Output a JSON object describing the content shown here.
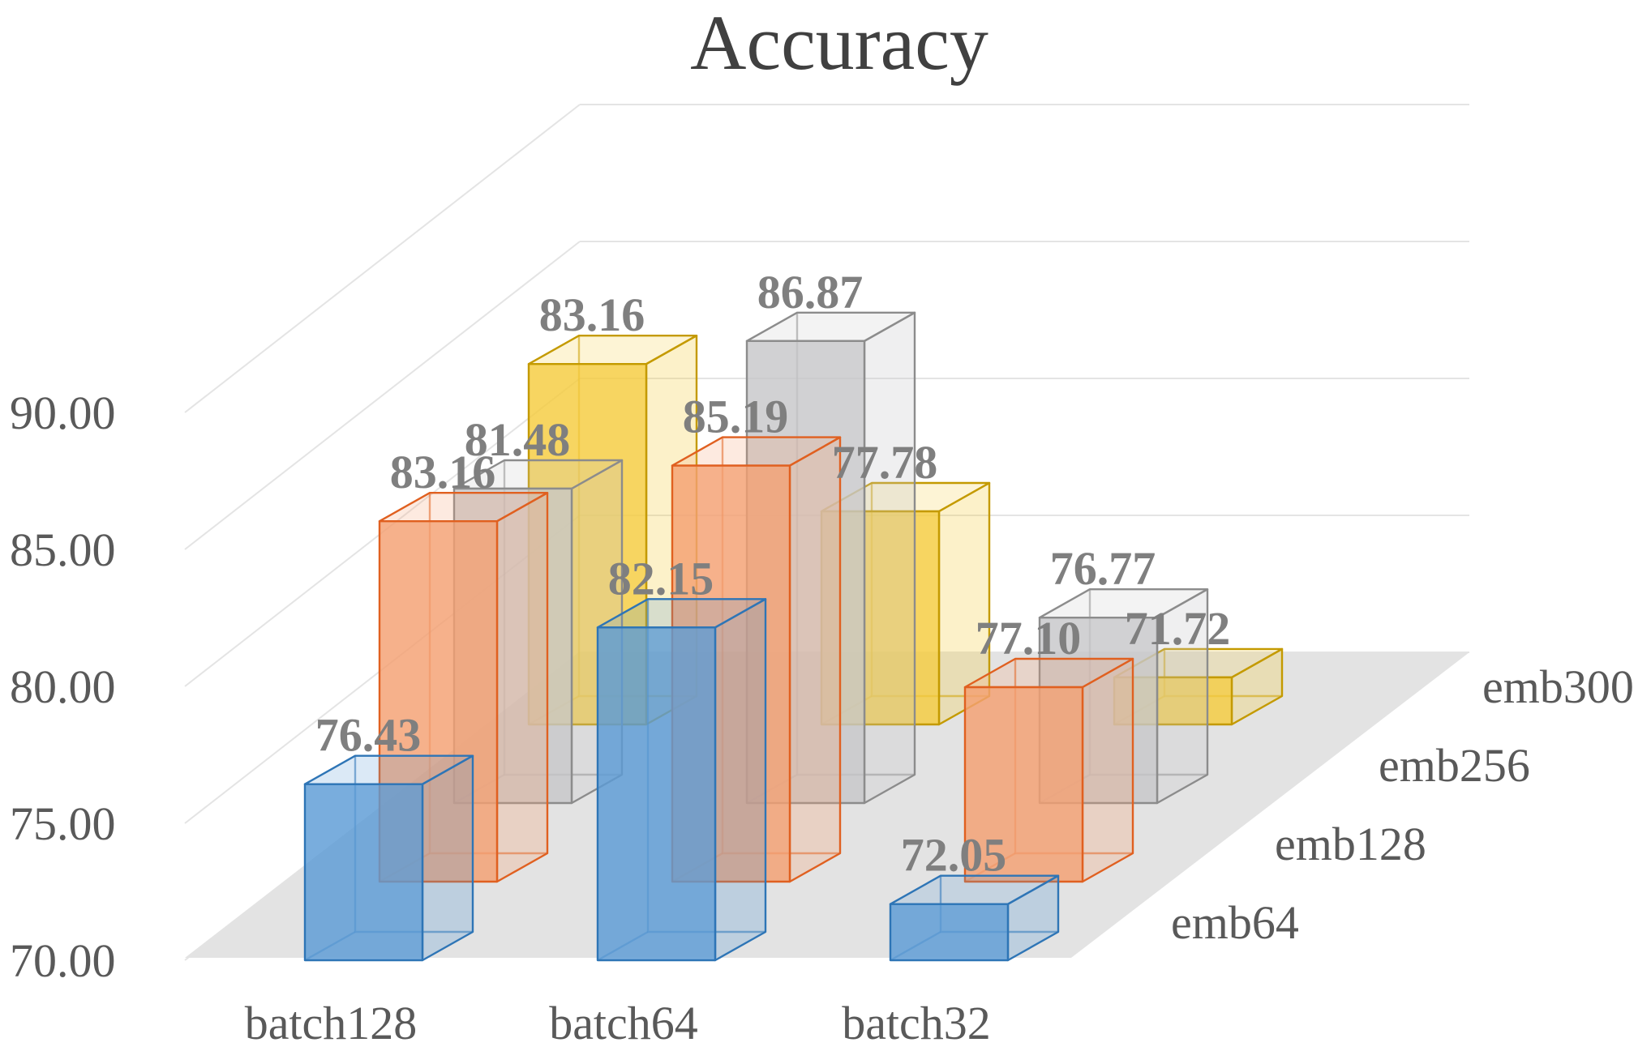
{
  "chart_data": {
    "type": "bar",
    "subtype": "3d-column",
    "title": "Accuracy",
    "categories": [
      "batch128",
      "batch64",
      "batch32"
    ],
    "series": [
      {
        "name": "emb64",
        "values": [
          76.43,
          82.15,
          72.05
        ],
        "fill": "#5b9bd5",
        "edge": "#2e75b6"
      },
      {
        "name": "emb128",
        "values": [
          83.16,
          85.19,
          77.1
        ],
        "fill": "#f4a072",
        "edge": "#e06020"
      },
      {
        "name": "emb256",
        "values": [
          81.48,
          86.87,
          76.77
        ],
        "fill": "#c7c7c9",
        "edge": "#8c8c8c"
      },
      {
        "name": "emb300",
        "values": [
          83.16,
          77.78,
          71.72
        ],
        "fill": "#f5cc3e",
        "edge": "#c49a00"
      }
    ],
    "yticks": [
      "70.00",
      "75.00",
      "80.00",
      "85.00",
      "90.00"
    ],
    "ylim": [
      70,
      90
    ],
    "grid": true,
    "colors": {
      "grid": "#e4e4e4",
      "floor": "#e3e3e3",
      "text": "#595959",
      "label": "#7f7f7f"
    }
  }
}
